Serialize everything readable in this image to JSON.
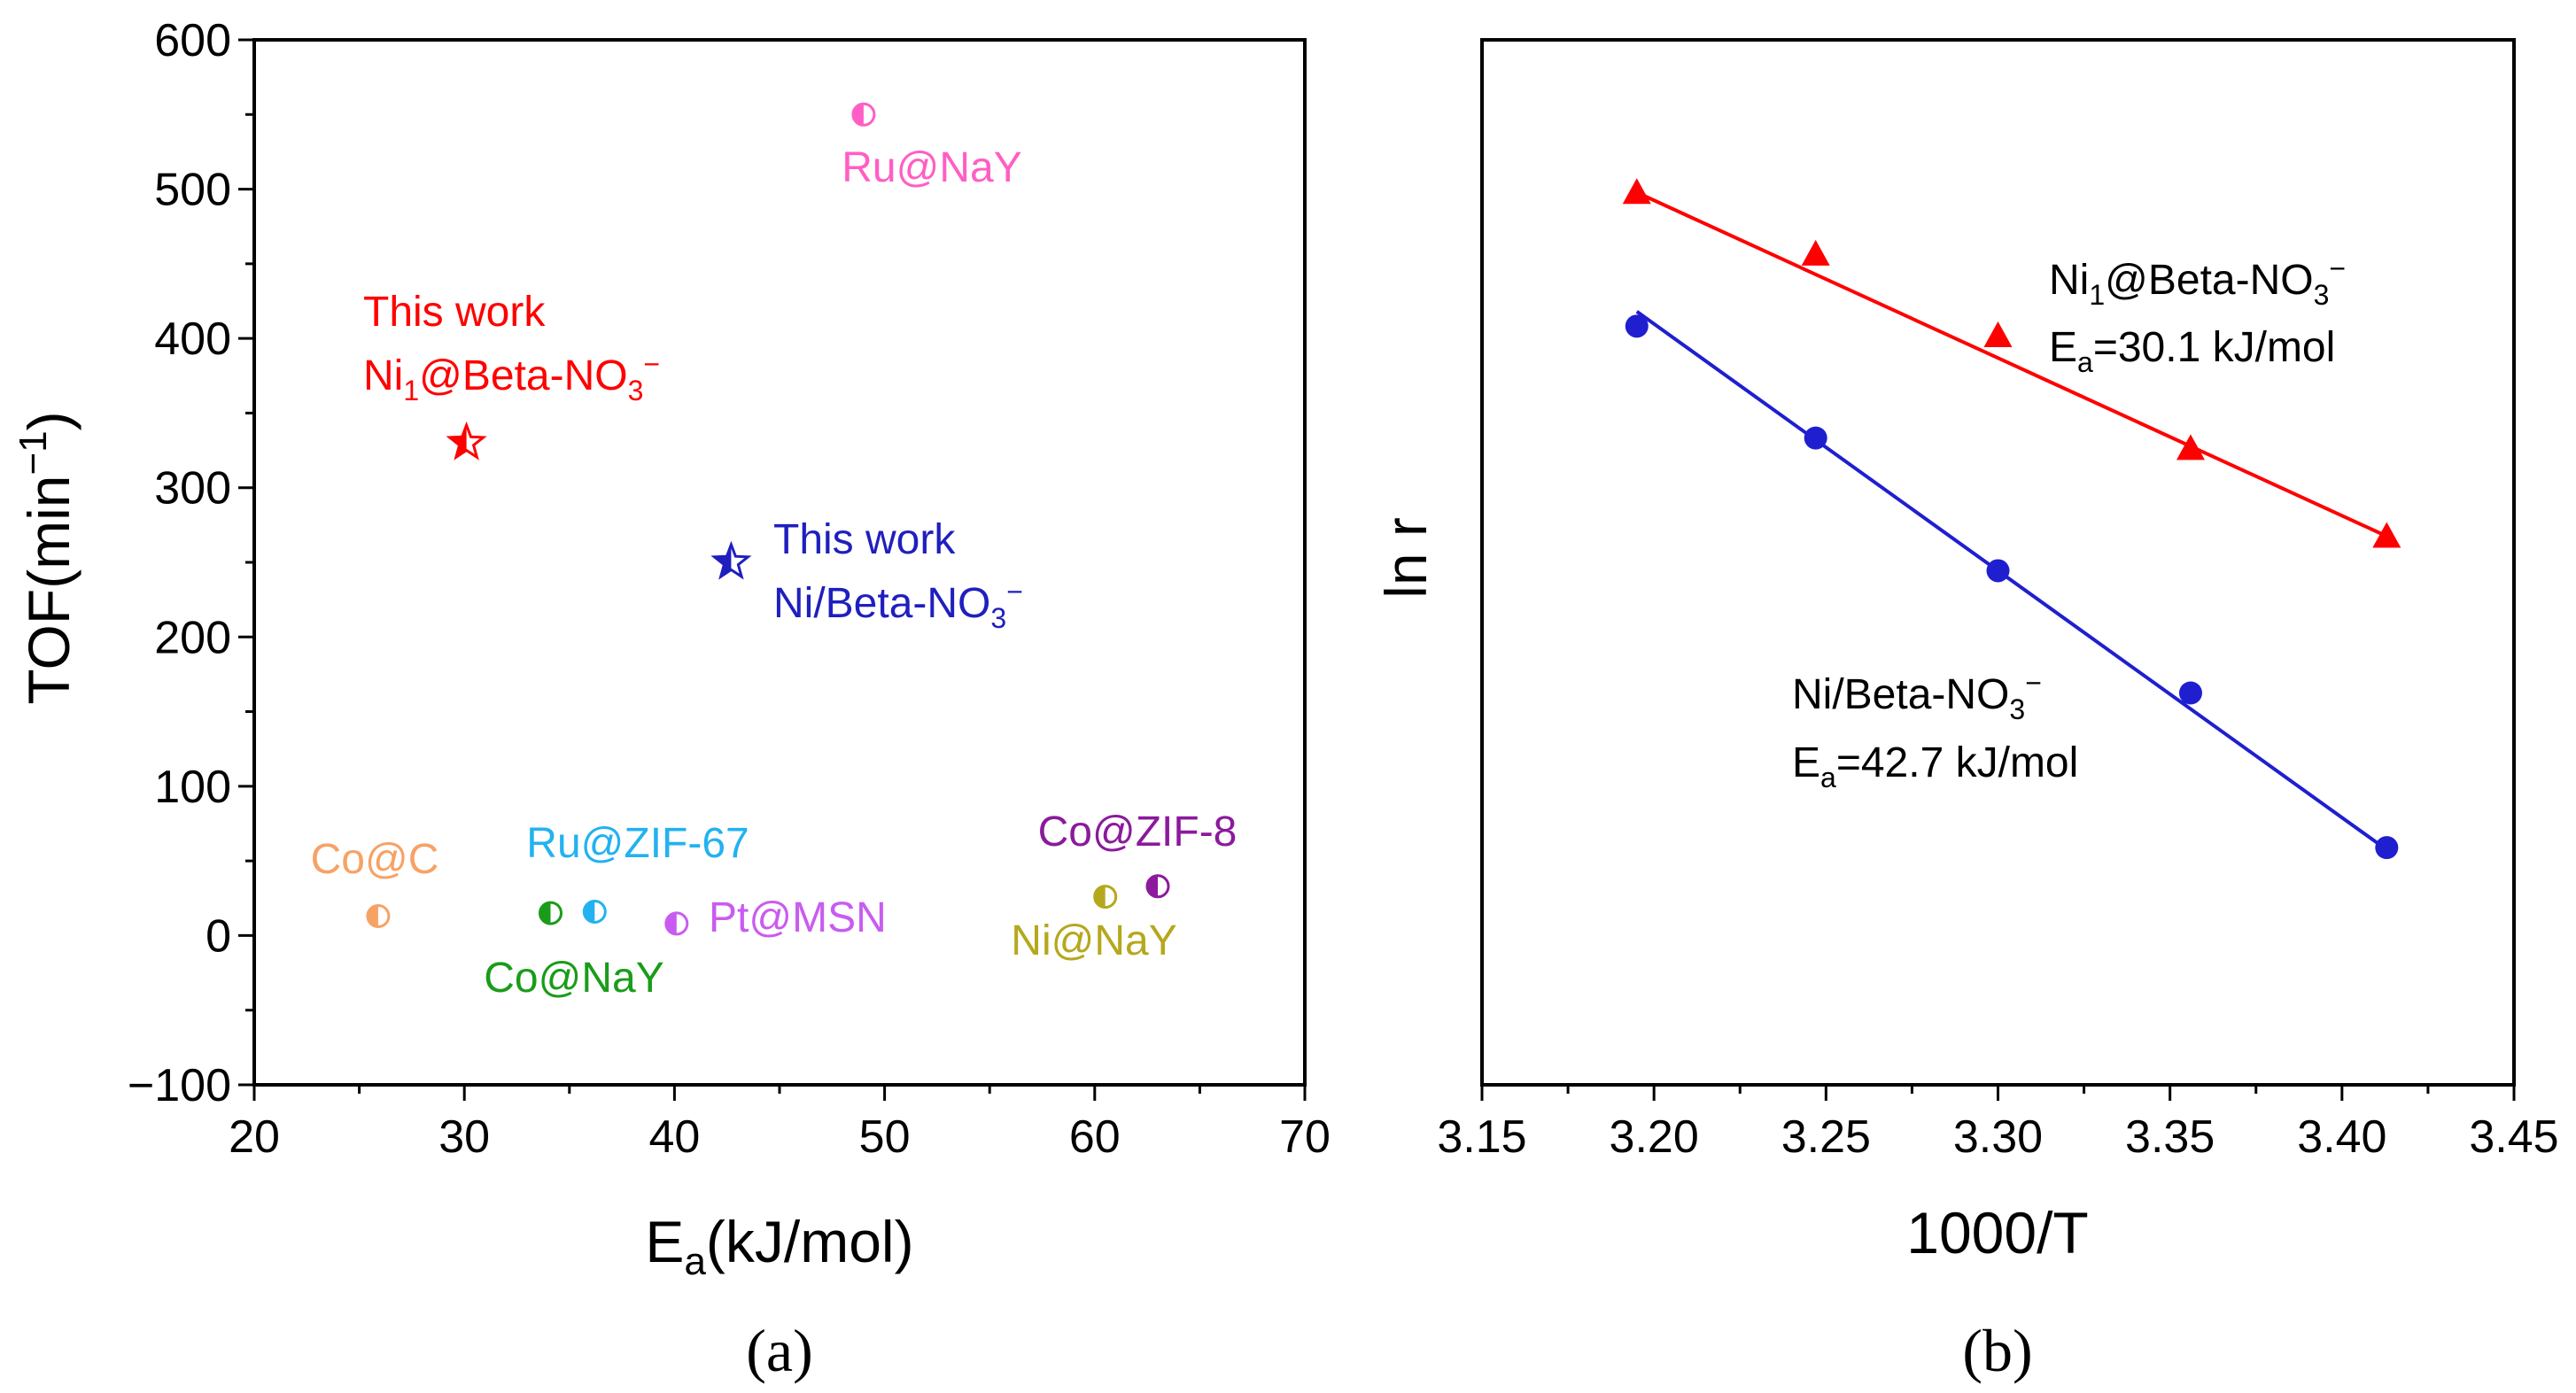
{
  "chart_data": [
    {
      "type": "scatter",
      "panel_label": "(a)",
      "xlabel": {
        "main": "E",
        "sub": "a",
        "rest": "(kJ/mol)"
      },
      "ylabel": {
        "main": "TOF(min",
        "sup": "−1",
        "rest": ")"
      },
      "xlim": [
        20,
        70
      ],
      "ylim": [
        -100,
        600
      ],
      "xticks": [
        20,
        30,
        40,
        50,
        60,
        70
      ],
      "yticks": [
        -100,
        0,
        100,
        200,
        300,
        400,
        500,
        600
      ],
      "ytick_labels": [
        "−100",
        "0",
        "100",
        "200",
        "300",
        "400",
        "500",
        "600"
      ],
      "points": [
        {
          "name": "Ru@NaY",
          "x": 49.0,
          "y": 550,
          "color": "#ff5ec4",
          "marker": "half-circle"
        },
        {
          "name": "Ni1@Beta-NO3−",
          "x": 30.1,
          "y": 330,
          "color": "#ff0000",
          "marker": "half-star"
        },
        {
          "name": "Ni/Beta-NO3−",
          "x": 42.7,
          "y": 250,
          "color": "#1f1fbf",
          "marker": "half-star"
        },
        {
          "name": "Co@C",
          "x": 25.9,
          "y": 13,
          "color": "#f7a265",
          "marker": "half-circle"
        },
        {
          "name": "Co@NaY",
          "x": 34.1,
          "y": 15,
          "color": "#1a9c1a",
          "marker": "half-circle"
        },
        {
          "name": "Ru@ZIF-67",
          "x": 36.2,
          "y": 16,
          "color": "#22b2f0",
          "marker": "half-circle"
        },
        {
          "name": "Pt@MSN",
          "x": 40.1,
          "y": 8,
          "color": "#c95cf0",
          "marker": "half-circle"
        },
        {
          "name": "Ni@NaY",
          "x": 60.5,
          "y": 26,
          "color": "#b5a81c",
          "marker": "half-circle"
        },
        {
          "name": "Co@ZIF-8",
          "x": 63.0,
          "y": 33,
          "color": "#8b1a9c",
          "marker": "half-circle"
        }
      ],
      "annotations": {
        "ru_nay": "Ru@NaY",
        "this_work_1": "This work",
        "ni1_beta": {
          "a": "Ni",
          "sub": "1",
          "b": "@Beta-NO",
          "sub2": "3",
          "sup": "−"
        },
        "this_work_2": "This work",
        "ni_beta": {
          "a": "Ni/Beta-NO",
          "sub": "3",
          "sup": "−"
        },
        "co_c": "Co@C",
        "ru_zif67": "Ru@ZIF-67",
        "co_zif8": "Co@ZIF-8",
        "pt_msn": "Pt@MSN",
        "co_nay": "Co@NaY",
        "ni_nay": "Ni@NaY"
      }
    },
    {
      "type": "line",
      "panel_label": "(b)",
      "xlabel": "1000/T",
      "ylabel": "ln r",
      "xlim": [
        3.15,
        3.45
      ],
      "xticks": [
        3.15,
        3.2,
        3.25,
        3.3,
        3.35,
        3.4,
        3.45
      ],
      "xtick_labels": [
        "3.15",
        "3.20",
        "3.25",
        "3.30",
        "3.35",
        "3.40",
        "3.45"
      ],
      "ylim_relative": [
        0,
        1
      ],
      "series": [
        {
          "name": "Ni1@Beta-NO3−",
          "color": "#ff0000",
          "marker": "triangle",
          "x": [
            3.195,
            3.247,
            3.3,
            3.356,
            3.413
          ],
          "y": [
            0.854,
            0.795,
            0.717,
            0.609,
            0.525
          ],
          "fit": {
            "x": [
              3.195,
              3.413
            ],
            "y": [
              0.854,
              0.525
            ]
          },
          "label": {
            "a": "Ni",
            "sub": "1",
            "b": "@Beta-NO",
            "sub2": "3",
            "sup": "−"
          },
          "ea": {
            "a": "E",
            "sub": "a",
            "b": "=30.1 kJ/mol"
          }
        },
        {
          "name": "Ni/Beta-NO3−",
          "color": "#1f1fcf",
          "marker": "circle",
          "x": [
            3.195,
            3.247,
            3.3,
            3.356,
            3.413
          ],
          "y": [
            0.726,
            0.619,
            0.492,
            0.375,
            0.227
          ],
          "fit": {
            "x": [
              3.195,
              3.413
            ],
            "y": [
              0.74,
              0.225
            ]
          },
          "label": {
            "a": "Ni/Beta-NO",
            "sub": "3",
            "sup": "−"
          },
          "ea": {
            "a": "E",
            "sub": "a",
            "b": "=42.7 kJ/mol"
          }
        }
      ]
    }
  ]
}
